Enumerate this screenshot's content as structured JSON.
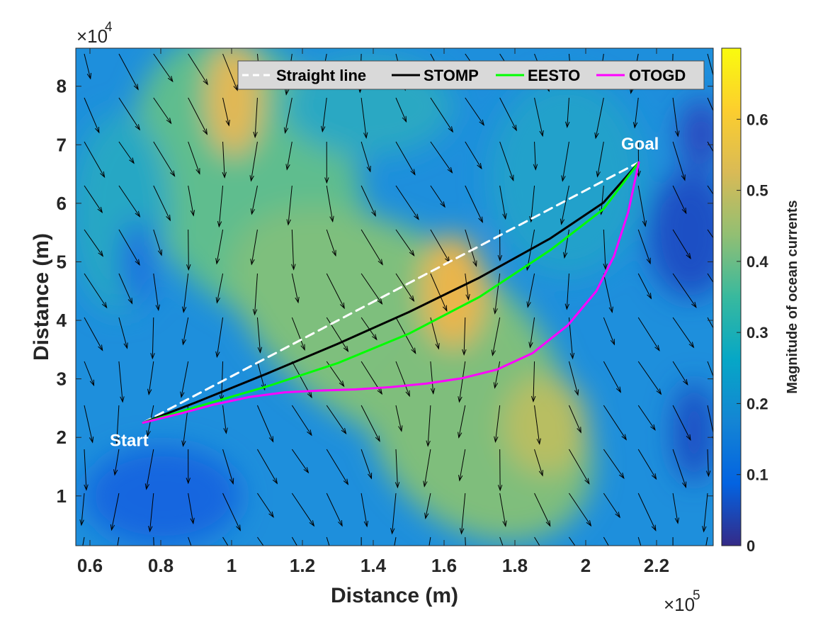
{
  "chart_data": {
    "type": "line",
    "xlabel": "Distance (m)",
    "ylabel": "Distance (m)",
    "x_exponent_label": "×10",
    "x_exponent_power": "5",
    "y_exponent_label": "×10",
    "y_exponent_power": "4",
    "xlim": [
      56000,
      236000
    ],
    "ylim": [
      1500,
      86500
    ],
    "x_ticks": [
      60000,
      80000,
      100000,
      120000,
      140000,
      160000,
      180000,
      200000,
      220000
    ],
    "x_tick_labels": [
      "0.6",
      "0.8",
      "1",
      "1.2",
      "1.4",
      "1.6",
      "1.8",
      "2",
      "2.2"
    ],
    "y_ticks": [
      10000,
      20000,
      30000,
      40000,
      50000,
      60000,
      70000,
      80000
    ],
    "y_tick_labels": [
      "1",
      "2",
      "3",
      "4",
      "5",
      "6",
      "7",
      "8"
    ],
    "legend_position": "top-right",
    "colorbar": {
      "label": "Magnitude of ocean currents",
      "range": [
        0,
        0.7
      ],
      "ticks": [
        0,
        0.1,
        0.2,
        0.3,
        0.4,
        0.5,
        0.6
      ],
      "tick_labels": [
        "0",
        "0.1",
        "0.2",
        "0.3",
        "0.4",
        "0.5",
        "0.6"
      ],
      "colormap": [
        "#352a87",
        "#0363e1",
        "#1485d4",
        "#06a7c6",
        "#38b99e",
        "#92bf73",
        "#d9ba56",
        "#fcce2e",
        "#f9fb0e"
      ]
    },
    "annotations": [
      {
        "text": "Start",
        "x": 75000,
        "y": 22500
      },
      {
        "text": "Goal",
        "x": 215000,
        "y": 67000
      }
    ],
    "series": [
      {
        "name": "Straight line",
        "color": "#ffffff",
        "dashed": true,
        "x": [
          75000,
          215000
        ],
        "y": [
          22500,
          67000
        ]
      },
      {
        "name": "STOMP",
        "color": "#000000",
        "dashed": false,
        "x": [
          75000,
          90000,
          110000,
          130000,
          150000,
          170000,
          190000,
          205000,
          215000
        ],
        "y": [
          22500,
          26000,
          30900,
          36000,
          41400,
          47300,
          54000,
          60100,
          67000
        ]
      },
      {
        "name": "EESTO",
        "color": "#00ff00",
        "dashed": false,
        "x": [
          75000,
          90000,
          110000,
          130000,
          150000,
          170000,
          190000,
          205000,
          215000
        ],
        "y": [
          22500,
          25200,
          28700,
          32700,
          37700,
          44000,
          52000,
          59000,
          67000
        ]
      },
      {
        "name": "OTOGD",
        "color": "#ff00ff",
        "dashed": false,
        "x": [
          75000,
          85000,
          95000,
          105000,
          115000,
          125000,
          135000,
          145000,
          155000,
          165000,
          175000,
          185000,
          195000,
          203000,
          208000,
          212000,
          215000
        ],
        "y": [
          22500,
          24000,
          25600,
          26900,
          27700,
          28000,
          28200,
          28600,
          29200,
          30100,
          31600,
          34400,
          39200,
          45000,
          51000,
          58500,
          67000
        ]
      }
    ]
  }
}
